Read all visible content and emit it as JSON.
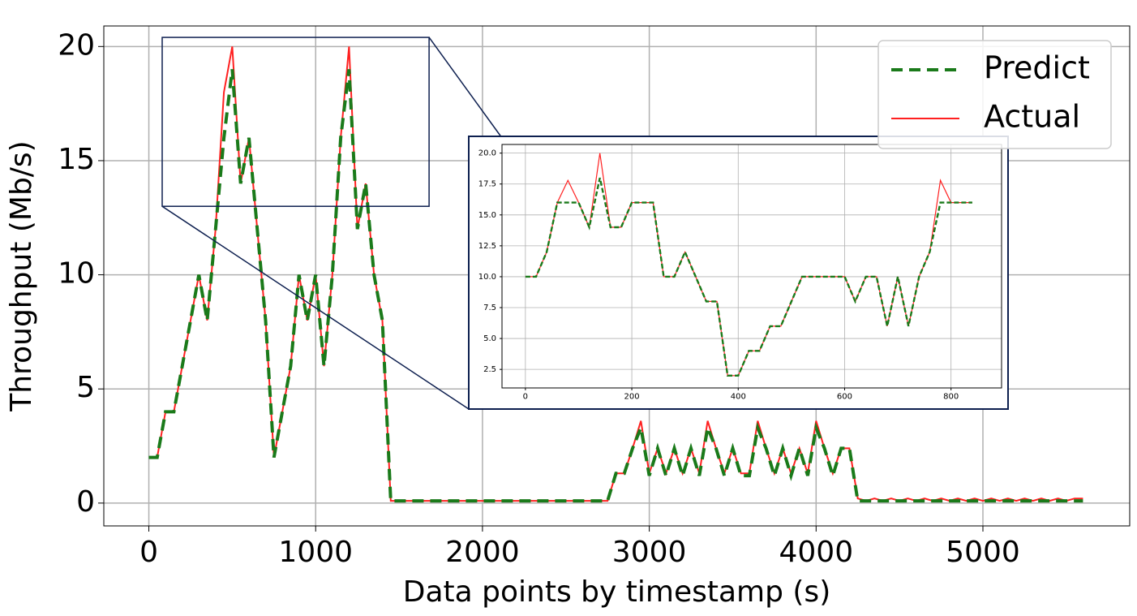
{
  "chart_data": [
    {
      "type": "line",
      "xlabel": "Data points by timestamp (s)",
      "ylabel": "Throughput (Mb/s)",
      "x": [
        0,
        50,
        100,
        150,
        200,
        250,
        300,
        350,
        400,
        450,
        500,
        550,
        600,
        650,
        700,
        750,
        800,
        850,
        900,
        950,
        1000,
        1050,
        1100,
        1150,
        1200,
        1250,
        1300,
        1350,
        1400,
        1450,
        1500,
        1550,
        1600,
        1650,
        1700,
        1750,
        1800,
        1850,
        1900,
        1950,
        2000,
        2050,
        2100,
        2150,
        2200,
        2250,
        2300,
        2350,
        2400,
        2450,
        2500,
        2550,
        2600,
        2650,
        2700,
        2750,
        2800,
        2850,
        2900,
        2950,
        3000,
        3050,
        3100,
        3150,
        3200,
        3250,
        3300,
        3350,
        3400,
        3450,
        3500,
        3550,
        3600,
        3650,
        3700,
        3750,
        3800,
        3850,
        3900,
        3950,
        4000,
        4050,
        4100,
        4150,
        4200,
        4250,
        4300,
        4350,
        4400,
        4450,
        4500,
        4550,
        4600,
        4650,
        4700,
        4750,
        4800,
        4850,
        4900,
        4950,
        5000,
        5050,
        5100,
        5150,
        5200,
        5250,
        5300,
        5350,
        5400,
        5450,
        5500,
        5550,
        5600
      ],
      "series": [
        {
          "name": "Actual",
          "color": "#ff2020",
          "style": "solid",
          "values": [
            2,
            2,
            4,
            4,
            6,
            8,
            10,
            8,
            12,
            18,
            20,
            14,
            16,
            12,
            8,
            2,
            4,
            6,
            10,
            8,
            10,
            6,
            10,
            16,
            20,
            12,
            14,
            10,
            8,
            0.1,
            0.1,
            0.1,
            0.1,
            0.1,
            0.1,
            0.1,
            0.1,
            0.1,
            0.1,
            0.1,
            0.1,
            0.1,
            0.1,
            0.1,
            0.1,
            0.1,
            0.1,
            0.1,
            0.1,
            0.1,
            0.1,
            0.1,
            0.1,
            0.1,
            0.1,
            0.1,
            1.3,
            1.3,
            2.4,
            3.6,
            1.3,
            2.4,
            1.3,
            2.4,
            1.3,
            2.4,
            1.3,
            3.6,
            2.4,
            1.3,
            2.4,
            1.3,
            1.3,
            3.6,
            2.4,
            1.3,
            2.4,
            1.3,
            2.4,
            1.3,
            3.6,
            2.4,
            1.3,
            2.4,
            2.4,
            0.2,
            0.1,
            0.2,
            0.1,
            0.2,
            0.1,
            0.2,
            0.1,
            0.2,
            0.1,
            0.2,
            0.1,
            0.2,
            0.1,
            0.2,
            0.1,
            0.2,
            0.1,
            0.2,
            0.1,
            0.2,
            0.1,
            0.2,
            0.1,
            0.2,
            0.1,
            0.2,
            0.2
          ]
        },
        {
          "name": "Predict",
          "color": "#1a7a1a",
          "style": "dashed",
          "values": [
            2,
            2,
            4,
            4,
            6,
            8,
            10,
            8,
            12,
            16,
            19,
            14,
            16,
            12,
            8,
            2,
            4,
            6,
            10,
            8,
            10,
            6,
            10,
            16,
            19,
            12,
            14,
            10,
            8,
            0.1,
            0.1,
            0.1,
            0.1,
            0.1,
            0.1,
            0.1,
            0.1,
            0.1,
            0.1,
            0.1,
            0.1,
            0.1,
            0.1,
            0.1,
            0.1,
            0.1,
            0.1,
            0.1,
            0.1,
            0.1,
            0.1,
            0.1,
            0.1,
            0.1,
            0.1,
            0.1,
            1.3,
            1.3,
            2.4,
            3.3,
            1.2,
            2.4,
            1.2,
            2.4,
            1.2,
            2.4,
            1.2,
            3.3,
            2.4,
            1.2,
            2.4,
            1.2,
            1.2,
            3.3,
            2.4,
            1.2,
            2.4,
            1.2,
            2.4,
            1.2,
            3.3,
            2.4,
            1.2,
            2.4,
            2.4,
            0.1,
            0.1,
            0.1,
            0.1,
            0.1,
            0.1,
            0.1,
            0.1,
            0.1,
            0.1,
            0.1,
            0.1,
            0.1,
            0.1,
            0.1,
            0.1,
            0.1,
            0.1,
            0.1,
            0.1,
            0.1,
            0.1,
            0.1,
            0.1,
            0.1,
            0.1,
            0.1,
            0.1
          ]
        }
      ],
      "xlim": [
        -270,
        5880
      ],
      "ylim": [
        -1,
        20.9
      ],
      "xticks": [
        0,
        1000,
        2000,
        3000,
        4000,
        5000
      ],
      "yticks": [
        0,
        5,
        10,
        15,
        20
      ],
      "grid": true,
      "legend": "upper right",
      "legend_order": [
        "Predict",
        "Actual"
      ],
      "zoom_region": {
        "xlim": [
          80,
          1680
        ],
        "ylim": [
          13,
          20.4
        ]
      }
    },
    {
      "type": "line",
      "x": [
        0,
        20,
        40,
        60,
        80,
        100,
        120,
        140,
        160,
        180,
        200,
        220,
        240,
        260,
        280,
        300,
        320,
        340,
        360,
        380,
        400,
        420,
        440,
        460,
        480,
        500,
        520,
        540,
        560,
        580,
        600,
        620,
        640,
        660,
        680,
        700,
        720,
        740,
        760,
        780,
        800,
        820,
        840
      ],
      "series": [
        {
          "name": "Actual",
          "color": "#ff2020",
          "style": "solid",
          "values": [
            10,
            10,
            12,
            16,
            17.8,
            16,
            14,
            20,
            14,
            14,
            16,
            16,
            16,
            10,
            10,
            12,
            10,
            8,
            8,
            2,
            2,
            4,
            4,
            6,
            6,
            8,
            10,
            10,
            10,
            10,
            10,
            8,
            10,
            10,
            6,
            10,
            6,
            10,
            12,
            17.8,
            16,
            16,
            16
          ]
        },
        {
          "name": "Predict",
          "color": "#1a7a1a",
          "style": "dashed",
          "values": [
            10,
            10,
            12,
            16,
            16,
            16,
            14,
            18,
            14,
            14,
            16,
            16,
            16,
            10,
            10,
            12,
            10,
            8,
            8,
            2,
            2,
            4,
            4,
            6,
            6,
            8,
            10,
            10,
            10,
            10,
            10,
            8,
            10,
            10,
            6,
            10,
            6,
            10,
            12,
            16,
            16,
            16,
            16
          ]
        }
      ],
      "xlim": [
        -44,
        895
      ],
      "ylim": [
        1,
        20.7
      ],
      "xticks": [
        0,
        200,
        400,
        600,
        800
      ],
      "yticks": [
        2.5,
        {
          "value": 5,
          "label": "5.0"
        },
        7.5,
        {
          "value": 10,
          "label": "10.0"
        },
        12.5,
        {
          "value": 15,
          "label": "15.0"
        },
        17.5,
        {
          "value": 20,
          "label": "20.0"
        }
      ],
      "grid": true
    }
  ]
}
